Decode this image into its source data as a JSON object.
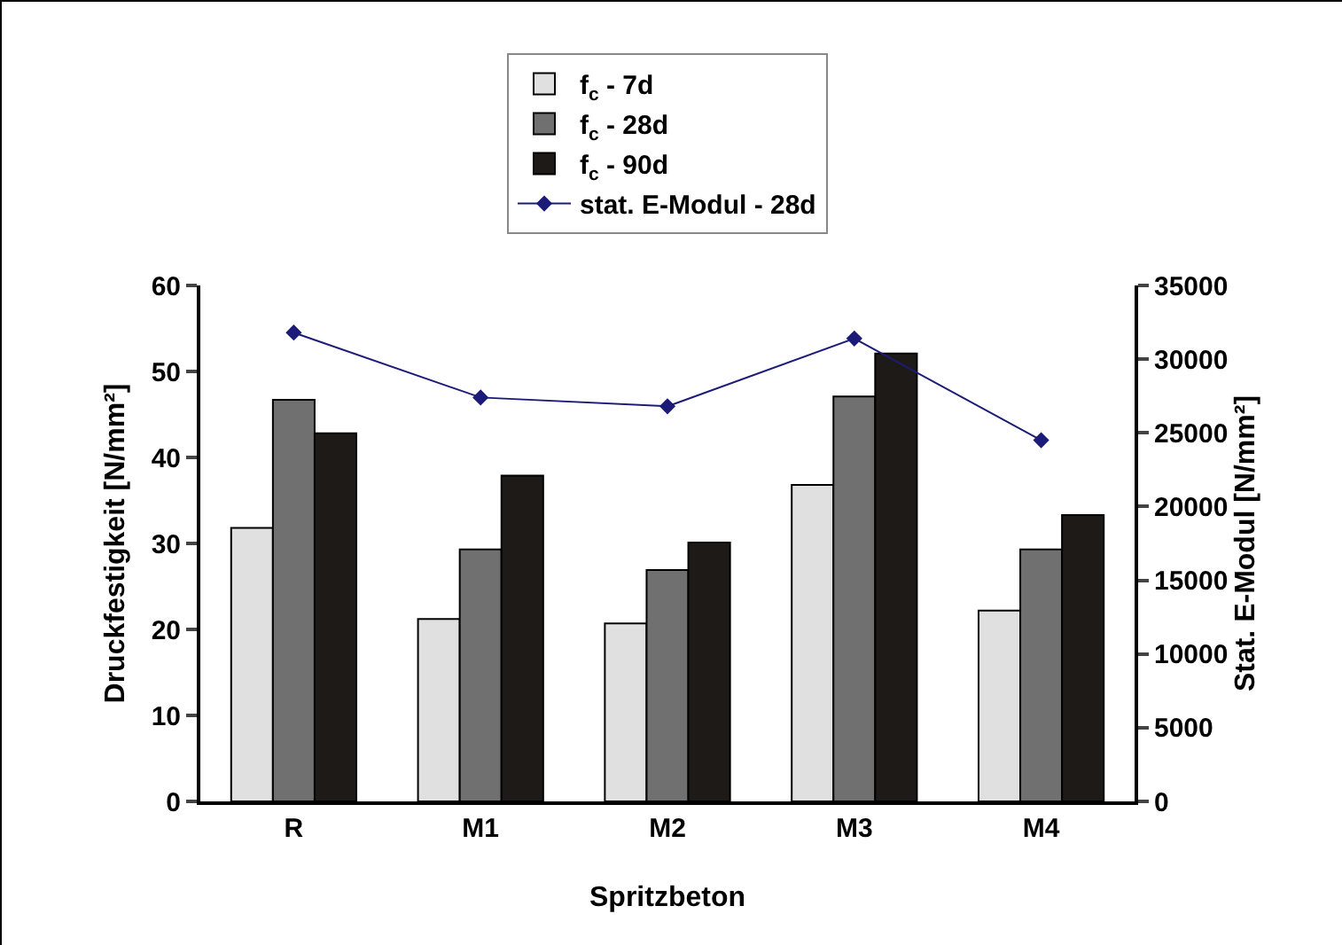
{
  "chart_data": {
    "type": "bar",
    "xlabel": "Spritzbeton",
    "ylabel": "Druckfestigkeit [N/mm²]",
    "y2label": "Stat. E-Modul [N/mm²]",
    "categories": [
      "R",
      "M1",
      "M2",
      "M3",
      "M4"
    ],
    "series": [
      {
        "name": "f$_{c}$ - 7d",
        "color": "#e0e0e0",
        "values": [
          31.8,
          21.2,
          20.7,
          36.8,
          22.2
        ]
      },
      {
        "name": "f$_{c}$ - 28d",
        "color": "#707070",
        "values": [
          46.7,
          29.3,
          26.9,
          47.1,
          29.3
        ]
      },
      {
        "name": "f$_{c}$ - 90d",
        "color": "#1e1a18",
        "values": [
          42.8,
          37.9,
          30.1,
          52.1,
          33.3
        ]
      },
      {
        "name": "stat. E-Modul - 28d",
        "type": "line",
        "axis": "y2",
        "color": "#1c1c78",
        "marker": "diamond",
        "values": [
          31800,
          27400,
          26800,
          31400,
          24500
        ]
      }
    ],
    "ylim": [
      0,
      60
    ],
    "yticks": [
      0,
      10,
      20,
      30,
      40,
      50,
      60
    ],
    "y2lim": [
      0,
      35000
    ],
    "y2ticks": [
      0,
      5000,
      10000,
      15000,
      20000,
      25000,
      30000,
      35000
    ],
    "grid": false,
    "legend": "top"
  }
}
